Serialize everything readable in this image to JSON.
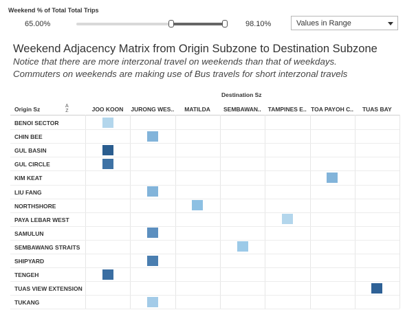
{
  "filter": {
    "label": "Weekend % of Total Total Trips",
    "min_value": "65.00%",
    "max_value": "98.10%",
    "range_fraction": [
      0.64,
      1.0
    ],
    "mode": "Values in Range"
  },
  "title": "Weekend Adjacency Matrix from Origin Subzone to Destination Subzone",
  "subtitle_lines": [
    "Notice that there are more interzonal travel on weekends than that of weekdays.",
    "Commuters on weekends are making use of Bus travels for short interzonal travels"
  ],
  "matrix": {
    "column_group_label": "Destination Sz",
    "row_header": "Origin Sz",
    "sort_icon": "sort-az-icon",
    "columns": [
      "JOO KOON",
      "JURONG WES..",
      "MATILDA",
      "SEMBAWAN..",
      "TAMPINES E..",
      "TOA PAYOH C..",
      "TUAS BAY"
    ],
    "rows": [
      "BENOI SECTOR",
      "CHIN BEE",
      "GUL BASIN",
      "GUL CIRCLE",
      "KIM KEAT",
      "LIU FANG",
      "NORTHSHORE",
      "PAYA LEBAR WEST",
      "SAMULUN",
      "SEMBAWANG STRAITS",
      "SHIPYARD",
      "TENGEH",
      "TUAS VIEW EXTENSION",
      "TUKANG"
    ],
    "cells": [
      {
        "row": 0,
        "col": 0,
        "color": "#b3d6ec"
      },
      {
        "row": 1,
        "col": 1,
        "color": "#82b4da"
      },
      {
        "row": 2,
        "col": 0,
        "color": "#2a5d8f"
      },
      {
        "row": 3,
        "col": 0,
        "color": "#3e72a5"
      },
      {
        "row": 4,
        "col": 5,
        "color": "#82b4da"
      },
      {
        "row": 5,
        "col": 1,
        "color": "#82b4da"
      },
      {
        "row": 6,
        "col": 2,
        "color": "#8dc0e3"
      },
      {
        "row": 7,
        "col": 4,
        "color": "#b3d6ec"
      },
      {
        "row": 8,
        "col": 1,
        "color": "#5c8fbf"
      },
      {
        "row": 9,
        "col": 3,
        "color": "#9ccae8"
      },
      {
        "row": 10,
        "col": 1,
        "color": "#4a7eb0"
      },
      {
        "row": 11,
        "col": 0,
        "color": "#3a6ea2"
      },
      {
        "row": 12,
        "col": 6,
        "color": "#2e6196"
      },
      {
        "row": 13,
        "col": 1,
        "color": "#a3cbe8"
      }
    ]
  }
}
